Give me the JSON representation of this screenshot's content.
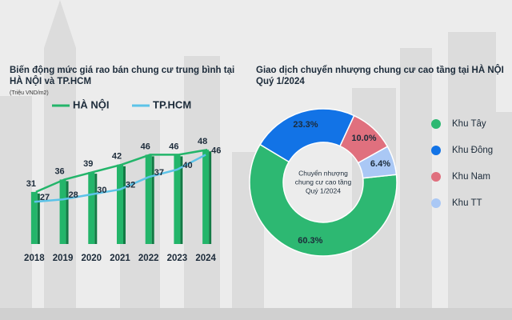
{
  "chart_data": [
    {
      "type": "bar",
      "title": [
        "Biến động mức giá rao bán chung cư trung bình tại",
        "HÀ NỘI và TP.HCM"
      ],
      "subtitle": "(Triệu VND/m2)",
      "categories": [
        "2018",
        "2019",
        "2020",
        "2021",
        "2022",
        "2023",
        "2024"
      ],
      "series": [
        {
          "name": "HÀ NỘI",
          "type": "bar",
          "color": "#23b56a",
          "values": [
            31,
            36,
            39,
            42,
            46,
            46,
            48
          ]
        },
        {
          "name": "TP.HCM",
          "type": "line",
          "color": "#5cc3e8",
          "values": [
            27,
            28,
            30,
            32,
            37,
            40,
            46
          ]
        }
      ],
      "ylim": [
        10,
        60
      ]
    },
    {
      "type": "pie",
      "title": [
        "Giao dịch chuyển nhượng chung cư cao tầng tại HÀ NỘI",
        "Quý 1/2024"
      ],
      "center_label": [
        "Chuyển nhượng",
        "chung cư cao tầng",
        "Quý 1/2024"
      ],
      "categories": [
        "Khu Tây",
        "Khu Đông",
        "Khu Nam",
        "Khu TT"
      ],
      "values": [
        60.3,
        23.3,
        10.0,
        6.4
      ],
      "value_labels": [
        "60.3%",
        "23.3%",
        "10.0%",
        "6.4%"
      ],
      "colors": [
        "#2db872",
        "#1273e6",
        "#e0707e",
        "#aac8f5"
      ]
    }
  ]
}
